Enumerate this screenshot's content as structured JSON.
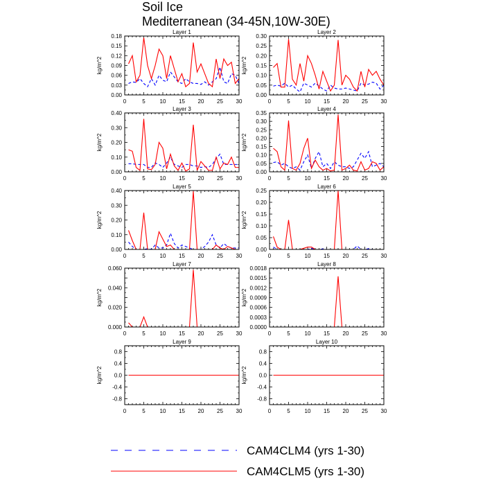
{
  "title": "Soil Ice",
  "subtitle": "Mediterranean (34-45N,10W-30E)",
  "chart_data": {
    "type": "line",
    "ylabel": "kg/m^2",
    "x": [
      1,
      2,
      3,
      4,
      5,
      6,
      7,
      8,
      9,
      10,
      11,
      12,
      13,
      14,
      15,
      16,
      17,
      18,
      19,
      20,
      21,
      22,
      23,
      24,
      25,
      26,
      27,
      28,
      29,
      30
    ],
    "xlim": [
      0,
      30
    ],
    "xticks": [
      "0",
      "5",
      "10",
      "15",
      "20",
      "25",
      "30"
    ],
    "legend": [
      {
        "name": "CAM4CLM4 (yrs 1-30)",
        "color": "#0000ff",
        "dash": true
      },
      {
        "name": "CAM4CLM5 (yrs 1-30)",
        "color": "#ff0000",
        "dash": false
      }
    ],
    "panels": [
      {
        "name": "Layer 1",
        "ylim": [
          0,
          0.18
        ],
        "yticks": [
          "0.00",
          "0.03",
          "0.06",
          "0.09",
          "0.12",
          "0.15",
          "0.18"
        ],
        "series": [
          {
            "name": "CAM4CLM4 (yrs 1-30)",
            "values": [
              0.035,
              0.04,
              0.038,
              0.05,
              0.035,
              0.025,
              0.05,
              0.03,
              0.06,
              0.045,
              0.04,
              0.07,
              0.055,
              0.04,
              0.035,
              0.05,
              0.04,
              0.035,
              0.035,
              0.032,
              0.04,
              0.03,
              0.04,
              0.05,
              0.085,
              0.04,
              0.035,
              0.065,
              0.06,
              0.035
            ]
          },
          {
            "name": "CAM4CLM5 (yrs 1-30)",
            "values": [
              0.095,
              0.12,
              0.04,
              0.06,
              0.175,
              0.09,
              0.05,
              0.09,
              0.14,
              0.12,
              0.05,
              0.12,
              0.08,
              0.04,
              0.065,
              0.025,
              0.035,
              0.16,
              0.07,
              0.095,
              0.065,
              0.035,
              0.025,
              0.11,
              0.05,
              0.11,
              0.09,
              0.1,
              0.035,
              0.05
            ]
          }
        ]
      },
      {
        "name": "Layer 2",
        "ylim": [
          0,
          0.3
        ],
        "yticks": [
          "0.00",
          "0.05",
          "0.10",
          "0.15",
          "0.20",
          "0.25",
          "0.30"
        ],
        "series": [
          {
            "name": "CAM4CLM4 (yrs 1-30)",
            "values": [
              0.045,
              0.05,
              0.045,
              0.06,
              0.04,
              0.05,
              0.03,
              0.015,
              0.06,
              0.05,
              0.04,
              0.06,
              0.045,
              0.03,
              0.02,
              0.05,
              0.035,
              0.03,
              0.03,
              0.035,
              0.03,
              0.025,
              0.02,
              0.06,
              0.05,
              0.055,
              0.065,
              0.06,
              0.03,
              0.05
            ]
          },
          {
            "name": "CAM4CLM5 (yrs 1-30)",
            "values": [
              0.14,
              0.16,
              0.04,
              0.04,
              0.285,
              0.08,
              0.05,
              0.16,
              0.07,
              0.2,
              0.16,
              0.1,
              0.03,
              0.12,
              0.07,
              0.02,
              0.05,
              0.28,
              0.05,
              0.1,
              0.08,
              0.04,
              0.02,
              0.12,
              0.04,
              0.13,
              0.1,
              0.12,
              0.08,
              0.05
            ]
          }
        ]
      },
      {
        "name": "Layer 3",
        "ylim": [
          0,
          0.4
        ],
        "yticks": [
          "0.00",
          "0.10",
          "0.20",
          "0.30",
          "0.40"
        ],
        "series": [
          {
            "name": "CAM4CLM4 (yrs 1-30)",
            "values": [
              0.055,
              0.055,
              0.05,
              0.05,
              0.05,
              0.03,
              0.03,
              0.06,
              0.05,
              0.03,
              0.06,
              0.1,
              0.05,
              0.04,
              0.03,
              0.05,
              0.05,
              0.04,
              0.04,
              0.03,
              0.035,
              0.03,
              0.05,
              0.09,
              0.12,
              0.05,
              0.05,
              0.05,
              0.05,
              0.05
            ]
          },
          {
            "name": "CAM4CLM5 (yrs 1-30)",
            "values": [
              0.15,
              0.14,
              0.03,
              0.01,
              0.36,
              0.02,
              0.015,
              0.05,
              0.2,
              0.16,
              0.02,
              0.12,
              0.04,
              0.01,
              0.06,
              0.005,
              0.02,
              0.32,
              0.01,
              0.07,
              0.04,
              0.01,
              0.01,
              0.1,
              0.02,
              0.06,
              0.05,
              0.1,
              0.03,
              0.03
            ]
          }
        ]
      },
      {
        "name": "Layer 4",
        "ylim": [
          0,
          0.35
        ],
        "yticks": [
          "0.00",
          "0.05",
          "0.10",
          "0.15",
          "0.20",
          "0.25",
          "0.30",
          "0.35"
        ],
        "series": [
          {
            "name": "CAM4CLM4 (yrs 1-30)",
            "values": [
              0.055,
              0.06,
              0.04,
              0.05,
              0.03,
              0.02,
              0.03,
              0.01,
              0.06,
              0.1,
              0.02,
              0.08,
              0.12,
              0.03,
              0.05,
              0.02,
              0.06,
              0.04,
              0.03,
              0.03,
              0.02,
              0.03,
              0.07,
              0.11,
              0.08,
              0.12,
              0.03,
              0.04,
              0.05,
              0.03
            ]
          },
          {
            "name": "CAM4CLM5 (yrs 1-30)",
            "values": [
              0.14,
              0.12,
              0.03,
              0.01,
              0.305,
              0.02,
              0.01,
              0.05,
              0.14,
              0.2,
              0.02,
              0.07,
              0.03,
              0.01,
              0.02,
              0.005,
              0.01,
              0.34,
              0.01,
              0.02,
              0.04,
              0.01,
              0.005,
              0.06,
              0.01,
              0.02,
              0.06,
              0.05,
              0.01,
              0.03
            ]
          }
        ]
      },
      {
        "name": "Layer 5",
        "ylim": [
          0,
          0.4
        ],
        "yticks": [
          "0.00",
          "0.10",
          "0.20",
          "0.30",
          "0.40"
        ],
        "series": [
          {
            "name": "CAM4CLM4 (yrs 1-30)",
            "values": [
              0.05,
              0.02,
              0,
              0,
              0,
              0.005,
              0,
              0.03,
              0.01,
              0.01,
              0.03,
              0.11,
              0.04,
              0.01,
              0.03,
              0.02,
              0.01,
              0,
              0,
              0,
              0.02,
              0.05,
              0.1,
              0.03,
              0.01,
              0.04,
              0.02,
              0.01,
              0.01,
              0.01
            ]
          },
          {
            "name": "CAM4CLM5 (yrs 1-30)",
            "values": [
              0.13,
              0.06,
              0,
              0,
              0.25,
              0,
              0,
              0,
              0.12,
              0.07,
              0.02,
              0.03,
              0,
              0,
              0,
              0,
              0,
              0.395,
              0,
              0,
              0,
              0,
              0,
              0.03,
              0.01,
              0,
              0.02,
              0.01,
              0,
              0
            ]
          }
        ]
      },
      {
        "name": "Layer 6",
        "ylim": [
          0,
          0.25
        ],
        "yticks": [
          "0.00",
          "0.05",
          "0.10",
          "0.15",
          "0.20",
          "0.25"
        ],
        "series": [
          {
            "name": "CAM4CLM4 (yrs 1-30)",
            "values": [
              0.01,
              0,
              0,
              0,
              0,
              0,
              0,
              0,
              0,
              0,
              0.005,
              0,
              0,
              0.002,
              0,
              0,
              0,
              0,
              0,
              0,
              0,
              0,
              0.015,
              0,
              0,
              0.003,
              0,
              0,
              0,
              0
            ]
          },
          {
            "name": "CAM4CLM5 (yrs 1-30)",
            "values": [
              0.055,
              0.01,
              0,
              0,
              0.125,
              0,
              0,
              0,
              0.005,
              0.01,
              0.01,
              0,
              0,
              0,
              0,
              0,
              0,
              0.25,
              0,
              0,
              0,
              0,
              0,
              0,
              0,
              0,
              0,
              0,
              0,
              0
            ]
          }
        ]
      },
      {
        "name": "Layer 7",
        "ylim": [
          0,
          0.07
        ],
        "yticks": [
          "0.000",
          "",
          "0.020",
          "",
          "0.040",
          "",
          "0.060"
        ],
        "series": [
          {
            "name": "CAM4CLM4 (yrs 1-30)",
            "values": [
              0,
              0,
              0,
              0,
              0,
              0,
              0,
              0,
              0,
              0,
              0,
              0,
              0,
              0,
              0,
              0,
              0,
              0,
              0,
              0,
              0,
              0,
              0,
              0,
              0,
              0,
              0,
              0,
              0,
              0
            ]
          },
          {
            "name": "CAM4CLM5 (yrs 1-30)",
            "values": [
              0.005,
              0,
              0,
              0,
              0.012,
              0,
              null,
              null,
              null,
              null,
              null,
              null,
              null,
              null,
              null,
              null,
              0,
              0.068,
              0,
              null,
              null,
              null,
              null,
              null,
              null,
              null,
              null,
              null,
              null,
              null
            ]
          }
        ]
      },
      {
        "name": "Layer 8",
        "ylim": [
          0,
          0.0018
        ],
        "yticks": [
          "0.0000",
          "0.0003",
          "0.0006",
          "0.0009",
          "0.0012",
          "0.0015",
          "0.0018"
        ],
        "series": [
          {
            "name": "CAM4CLM4 (yrs 1-30)",
            "values": [
              0,
              0,
              0,
              0,
              0,
              0,
              0,
              0,
              0,
              0,
              0,
              0,
              0,
              0,
              0,
              0,
              0,
              0,
              0,
              0,
              0,
              0,
              0,
              0,
              0,
              0,
              0,
              0,
              0,
              0
            ]
          },
          {
            "name": "CAM4CLM5 (yrs 1-30)",
            "values": [
              null,
              null,
              null,
              null,
              null,
              null,
              null,
              null,
              null,
              null,
              null,
              null,
              null,
              null,
              null,
              null,
              0,
              0.00155,
              0,
              null,
              null,
              null,
              null,
              null,
              null,
              null,
              null,
              null,
              null,
              null
            ]
          }
        ]
      },
      {
        "name": "Layer 9",
        "ylim": [
          -1,
          1
        ],
        "yticks": [
          "-0.8",
          "-0.4",
          "0.0",
          "0.4",
          "0.8"
        ],
        "series": [
          {
            "name": "CAM4CLM4 (yrs 1-30)",
            "values": [
              0,
              0,
              0,
              0,
              0,
              0,
              0,
              0,
              0,
              0,
              0,
              0,
              0,
              0,
              0,
              0,
              0,
              0,
              0,
              0,
              0,
              0,
              0,
              0,
              0,
              0,
              0,
              0,
              0,
              0
            ]
          },
          {
            "name": "CAM4CLM5 (yrs 1-30)",
            "values": [
              0,
              0,
              0,
              0,
              0,
              0,
              0,
              0,
              0,
              0,
              0,
              0,
              0,
              0,
              0,
              0,
              0,
              0,
              0,
              0,
              0,
              0,
              0,
              0,
              0,
              0,
              0,
              0,
              0,
              0
            ]
          }
        ]
      },
      {
        "name": "Layer 10",
        "ylim": [
          -1,
          1
        ],
        "yticks": [
          "-0.8",
          "-0.4",
          "0.0",
          "0.4",
          "0.8"
        ],
        "series": [
          {
            "name": "CAM4CLM4 (yrs 1-30)",
            "values": [
              0,
              0,
              0,
              0,
              0,
              0,
              0,
              0,
              0,
              0,
              0,
              0,
              0,
              0,
              0,
              0,
              0,
              0,
              0,
              0,
              0,
              0,
              0,
              0,
              0,
              0,
              0,
              0,
              0,
              0
            ]
          },
          {
            "name": "CAM4CLM5 (yrs 1-30)",
            "values": [
              0,
              0,
              0,
              0,
              0,
              0,
              0,
              0,
              0,
              0,
              0,
              0,
              0,
              0,
              0,
              0,
              0,
              0,
              0,
              0,
              0,
              0,
              0,
              0,
              0,
              0,
              0,
              0,
              0,
              0
            ]
          }
        ]
      }
    ]
  }
}
